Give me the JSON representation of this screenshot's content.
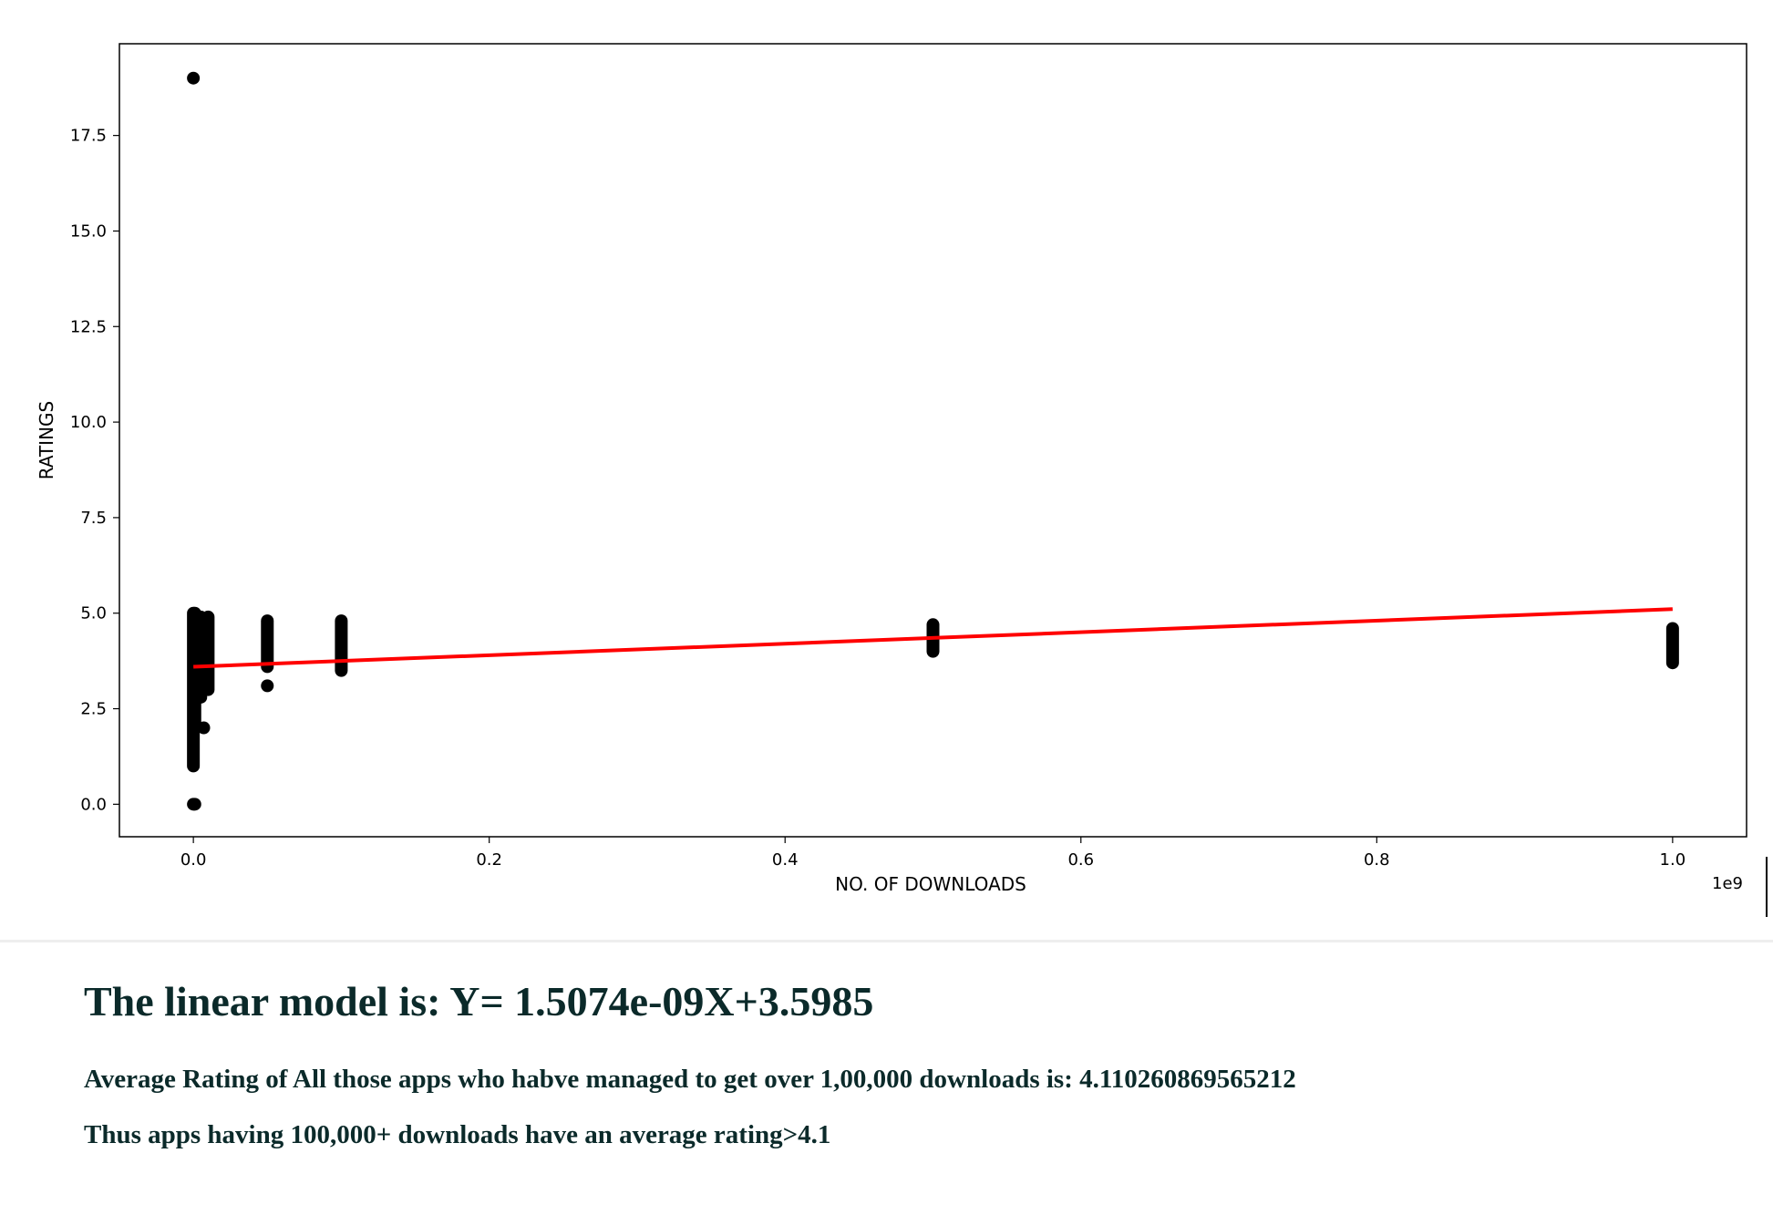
{
  "chart_data": {
    "type": "scatter",
    "title": "",
    "xlabel": "NO. OF DOWNLOADS",
    "ylabel": "RATINGS",
    "x_offset_text": "1e9",
    "x_scale": 1000000000,
    "xlim": [
      -0.05,
      1.05
    ],
    "ylim": [
      -0.85,
      19.9
    ],
    "xticks": [
      0.0,
      0.2,
      0.4,
      0.6,
      0.8,
      1.0
    ],
    "xtick_labels": [
      "0.0",
      "0.2",
      "0.4",
      "0.6",
      "0.8",
      "1.0"
    ],
    "yticks": [
      0.0,
      2.5,
      5.0,
      7.5,
      10.0,
      12.5,
      15.0,
      17.5
    ],
    "ytick_labels": [
      "0.0",
      "2.5",
      "5.0",
      "7.5",
      "10.0",
      "12.5",
      "15.0",
      "17.5"
    ],
    "grid": false,
    "point_color": "#000000",
    "line_color": "#ff0000",
    "clusters": [
      {
        "x": 0.0,
        "y_min": 1.0,
        "y_max": 5.0
      },
      {
        "x": 0.001,
        "y_min": 2.0,
        "y_max": 5.0
      },
      {
        "x": 0.005,
        "y_min": 2.8,
        "y_max": 4.9
      },
      {
        "x": 0.01,
        "y_min": 3.0,
        "y_max": 4.9
      },
      {
        "x": 0.05,
        "y_min": 3.6,
        "y_max": 4.8
      },
      {
        "x": 0.1,
        "y_min": 3.5,
        "y_max": 4.8
      },
      {
        "x": 0.5,
        "y_min": 4.0,
        "y_max": 4.7
      },
      {
        "x": 1.0,
        "y_min": 3.7,
        "y_max": 4.6
      }
    ],
    "points": [
      {
        "x": 0.0,
        "y": 19.0
      },
      {
        "x": 0.0,
        "y": 0.0
      },
      {
        "x": 0.001,
        "y": 0.0
      },
      {
        "x": 0.007,
        "y": 2.0
      },
      {
        "x": 0.05,
        "y": 3.1
      }
    ],
    "regression": {
      "slope": 1.5074,
      "intercept": 3.5985,
      "x_start": 0.0,
      "x_end": 1.0
    }
  },
  "output": {
    "model_text": "The linear model is: Y= 1.5074e-09X+3.5985",
    "average_text": "Average Rating of All those apps who habve managed to get over 1,00,000 downloads is: 4.110260869565212",
    "conclusion_text": "Thus apps having 100,000+ downloads have an average rating>4.1"
  }
}
